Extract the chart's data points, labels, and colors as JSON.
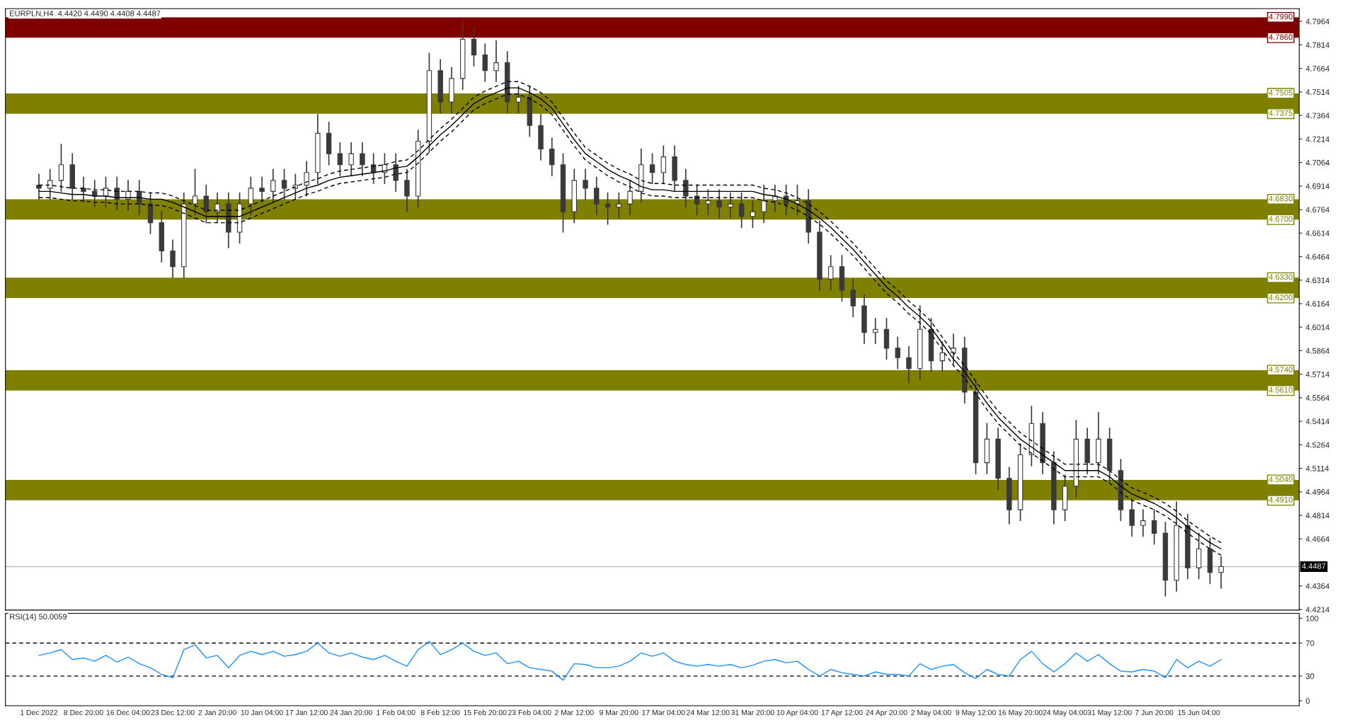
{
  "chart_data": [
    {
      "type": "candlestick",
      "title": "EURPLN,H4  4.4420 4.4490 4.4408 4.4487",
      "categories": [
        null,
        null,
        null,
        null,
        null,
        null,
        null,
        null,
        null,
        null,
        null,
        null,
        null,
        null,
        null,
        null,
        null,
        null,
        null,
        null,
        null,
        null,
        null,
        null,
        null,
        null,
        null,
        null,
        null,
        null,
        null,
        null,
        null,
        null,
        null,
        null,
        null,
        null,
        null,
        null,
        null,
        null,
        null,
        null,
        null,
        null,
        null,
        null,
        null,
        null,
        null,
        null,
        null,
        null,
        null,
        null,
        null,
        null,
        null,
        null,
        null,
        null,
        null,
        null,
        null,
        null,
        null,
        null,
        null,
        null,
        null,
        null,
        null,
        null,
        null,
        null,
        null,
        null,
        null,
        null,
        null,
        null,
        null,
        null,
        null,
        null,
        null,
        null,
        null,
        null,
        null,
        null,
        null,
        null,
        null,
        null,
        null,
        null,
        null,
        null,
        null,
        null,
        null,
        null,
        null,
        null,
        null
      ],
      "ohlc": [
        [
          4.692,
          4.699,
          4.683,
          4.69
        ],
        [
          4.69,
          4.702,
          4.683,
          4.695
        ],
        [
          4.695,
          4.718,
          4.688,
          4.705
        ],
        [
          4.705,
          4.712,
          4.683,
          4.69
        ],
        [
          4.69,
          4.697,
          4.681,
          4.688
        ],
        [
          4.688,
          4.695,
          4.678,
          4.685
        ],
        [
          4.685,
          4.697,
          4.678,
          4.69
        ],
        [
          4.69,
          4.697,
          4.676,
          4.683
        ],
        [
          4.683,
          4.695,
          4.676,
          4.688
        ],
        [
          4.688,
          4.695,
          4.673,
          4.68
        ],
        [
          4.68,
          4.687,
          4.661,
          4.668
        ],
        [
          4.668,
          4.675,
          4.643,
          4.65
        ],
        [
          4.65,
          4.657,
          4.633,
          4.64
        ],
        [
          4.64,
          4.687,
          4.633,
          4.68
        ],
        [
          4.68,
          4.702,
          4.673,
          4.685
        ],
        [
          4.685,
          4.692,
          4.668,
          4.675
        ],
        [
          4.675,
          4.687,
          4.668,
          4.68
        ],
        [
          4.68,
          4.687,
          4.652,
          4.662
        ],
        [
          4.662,
          4.687,
          4.655,
          4.68
        ],
        [
          4.68,
          4.697,
          4.673,
          4.69
        ],
        [
          4.69,
          4.697,
          4.681,
          4.688
        ],
        [
          4.688,
          4.702,
          4.681,
          4.695
        ],
        [
          4.695,
          4.702,
          4.683,
          4.69
        ],
        [
          4.69,
          4.699,
          4.683,
          4.692
        ],
        [
          4.692,
          4.707,
          4.685,
          4.7
        ],
        [
          4.7,
          4.737,
          4.693,
          4.725
        ],
        [
          4.725,
          4.732,
          4.705,
          4.712
        ],
        [
          4.712,
          4.719,
          4.698,
          4.705
        ],
        [
          4.705,
          4.719,
          4.698,
          4.712
        ],
        [
          4.712,
          4.719,
          4.698,
          4.705
        ],
        [
          4.705,
          4.712,
          4.693,
          4.7
        ],
        [
          4.7,
          4.712,
          4.693,
          4.705
        ],
        [
          4.705,
          4.712,
          4.688,
          4.695
        ],
        [
          4.695,
          4.702,
          4.675,
          4.685
        ],
        [
          4.685,
          4.727,
          4.678,
          4.72
        ],
        [
          4.72,
          4.776,
          4.713,
          4.765
        ],
        [
          4.765,
          4.772,
          4.738,
          4.745
        ],
        [
          4.745,
          4.767,
          4.738,
          4.76
        ],
        [
          4.76,
          4.797,
          4.753,
          4.785
        ],
        [
          4.785,
          4.792,
          4.768,
          4.775
        ],
        [
          4.775,
          4.782,
          4.758,
          4.765
        ],
        [
          4.765,
          4.784,
          4.758,
          4.77
        ],
        [
          4.77,
          4.777,
          4.738,
          4.745
        ],
        [
          4.745,
          4.755,
          4.738,
          4.748
        ],
        [
          4.748,
          4.755,
          4.723,
          4.73
        ],
        [
          4.73,
          4.737,
          4.708,
          4.715
        ],
        [
          4.715,
          4.722,
          4.698,
          4.705
        ],
        [
          4.705,
          4.712,
          4.662,
          4.675
        ],
        [
          4.675,
          4.702,
          4.668,
          4.695
        ],
        [
          4.695,
          4.702,
          4.683,
          4.69
        ],
        [
          4.69,
          4.697,
          4.673,
          4.68
        ],
        [
          4.68,
          4.687,
          4.667,
          4.678
        ],
        [
          4.678,
          4.687,
          4.671,
          4.68
        ],
        [
          4.68,
          4.695,
          4.673,
          4.688
        ],
        [
          4.688,
          4.715,
          4.681,
          4.705
        ],
        [
          4.705,
          4.712,
          4.693,
          4.7
        ],
        [
          4.7,
          4.717,
          4.693,
          4.71
        ],
        [
          4.71,
          4.717,
          4.688,
          4.695
        ],
        [
          4.695,
          4.702,
          4.678,
          4.685
        ],
        [
          4.685,
          4.692,
          4.673,
          4.68
        ],
        [
          4.68,
          4.689,
          4.673,
          4.682
        ],
        [
          4.682,
          4.689,
          4.671,
          4.678
        ],
        [
          4.678,
          4.687,
          4.671,
          4.68
        ],
        [
          4.68,
          4.687,
          4.665,
          4.672
        ],
        [
          4.672,
          4.682,
          4.665,
          4.675
        ],
        [
          4.675,
          4.692,
          4.668,
          4.682
        ],
        [
          4.682,
          4.692,
          4.675,
          4.685
        ],
        [
          4.685,
          4.692,
          4.673,
          4.68
        ],
        [
          4.68,
          4.692,
          4.673,
          4.682
        ],
        [
          4.682,
          4.689,
          4.655,
          4.662
        ],
        [
          4.662,
          4.669,
          4.625,
          4.632
        ],
        [
          4.632,
          4.647,
          4.625,
          4.64
        ],
        [
          4.64,
          4.647,
          4.618,
          4.625
        ],
        [
          4.625,
          4.632,
          4.608,
          4.615
        ],
        [
          4.615,
          4.622,
          4.591,
          4.598
        ],
        [
          4.598,
          4.607,
          4.591,
          4.6
        ],
        [
          4.6,
          4.607,
          4.581,
          4.588
        ],
        [
          4.588,
          4.595,
          4.575,
          4.582
        ],
        [
          4.582,
          4.589,
          4.566,
          4.575
        ],
        [
          4.575,
          4.615,
          4.568,
          4.6
        ],
        [
          4.6,
          4.607,
          4.573,
          4.58
        ],
        [
          4.58,
          4.592,
          4.573,
          4.585
        ],
        [
          4.585,
          4.597,
          4.578,
          4.588
        ],
        [
          4.588,
          4.595,
          4.553,
          4.56
        ],
        [
          4.56,
          4.567,
          4.508,
          4.515
        ],
        [
          4.515,
          4.54,
          4.508,
          4.53
        ],
        [
          4.53,
          4.537,
          4.498,
          4.505
        ],
        [
          4.505,
          4.512,
          4.476,
          4.485
        ],
        [
          4.485,
          4.527,
          4.478,
          4.52
        ],
        [
          4.52,
          4.551,
          4.513,
          4.54
        ],
        [
          4.54,
          4.547,
          4.508,
          4.515
        ],
        [
          4.515,
          4.522,
          4.476,
          4.485
        ],
        [
          4.485,
          4.507,
          4.478,
          4.5
        ],
        [
          4.5,
          4.542,
          4.493,
          4.53
        ],
        [
          4.53,
          4.537,
          4.508,
          4.515
        ],
        [
          4.515,
          4.547,
          4.508,
          4.53
        ],
        [
          4.53,
          4.537,
          4.503,
          4.51
        ],
        [
          4.51,
          4.517,
          4.478,
          4.485
        ],
        [
          4.485,
          4.492,
          4.468,
          4.475
        ],
        [
          4.475,
          4.485,
          4.468,
          4.478
        ],
        [
          4.478,
          4.485,
          4.463,
          4.47
        ],
        [
          4.47,
          4.477,
          4.43,
          4.44
        ],
        [
          4.44,
          4.49,
          4.433,
          4.475
        ],
        [
          4.475,
          4.482,
          4.441,
          4.448
        ],
        [
          4.448,
          4.47,
          4.441,
          4.46
        ],
        [
          4.46,
          4.467,
          4.438,
          4.445
        ],
        [
          4.445,
          4.455,
          4.435,
          4.4487
        ]
      ],
      "series": [
        {
          "type": "line",
          "color": "#000000",
          "line_style": "solid",
          "values": [
            4.688,
            4.688,
            4.687,
            4.686,
            4.686,
            4.685,
            4.685,
            4.684,
            4.684,
            4.684,
            4.683,
            4.683,
            4.681,
            4.678,
            4.675,
            4.672,
            4.672,
            4.672,
            4.672,
            4.675,
            4.678,
            4.681,
            4.684,
            4.687,
            4.69,
            4.692,
            4.695,
            4.697,
            4.698,
            4.699,
            4.7,
            4.701,
            4.703,
            4.704,
            4.71,
            4.717,
            4.724,
            4.73,
            4.737,
            4.744,
            4.748,
            4.751,
            4.754,
            4.754,
            4.751,
            4.747,
            4.741,
            4.731,
            4.721,
            4.712,
            4.707,
            4.702,
            4.698,
            4.695,
            4.691,
            4.689,
            4.689,
            4.688,
            4.688,
            4.688,
            4.688,
            4.688,
            4.688,
            4.688,
            4.688,
            4.686,
            4.685,
            4.683,
            4.68,
            4.676,
            4.671,
            4.665,
            4.658,
            4.651,
            4.643,
            4.635,
            4.627,
            4.621,
            4.614,
            4.608,
            4.601,
            4.591,
            4.581,
            4.573,
            4.563,
            4.553,
            4.544,
            4.537,
            4.53,
            4.525,
            4.52,
            4.515,
            4.51,
            4.51,
            4.51,
            4.51,
            4.506,
            4.5,
            4.495,
            4.492,
            4.489,
            4.485,
            4.48,
            4.474,
            4.469,
            4.464,
            4.46
          ]
        },
        {
          "type": "line",
          "color": "#000000",
          "line_style": "dashed",
          "values": [
            4.692,
            4.692,
            4.691,
            4.69,
            4.69,
            4.689,
            4.689,
            4.688,
            4.688,
            4.688,
            4.687,
            4.687,
            4.685,
            4.682,
            4.679,
            4.676,
            4.676,
            4.676,
            4.676,
            4.679,
            4.682,
            4.685,
            4.688,
            4.691,
            4.694,
            4.696,
            4.699,
            4.701,
            4.702,
            4.703,
            4.704,
            4.705,
            4.707,
            4.708,
            4.714,
            4.721,
            4.728,
            4.734,
            4.741,
            4.748,
            4.752,
            4.755,
            4.758,
            4.758,
            4.755,
            4.751,
            4.745,
            4.735,
            4.725,
            4.716,
            4.711,
            4.706,
            4.702,
            4.699,
            4.695,
            4.693,
            4.693,
            4.692,
            4.692,
            4.692,
            4.692,
            4.692,
            4.692,
            4.692,
            4.692,
            4.69,
            4.689,
            4.687,
            4.684,
            4.68,
            4.675,
            4.669,
            4.662,
            4.655,
            4.647,
            4.639,
            4.631,
            4.625,
            4.618,
            4.612,
            4.605,
            4.595,
            4.585,
            4.577,
            4.567,
            4.557,
            4.548,
            4.541,
            4.534,
            4.529,
            4.524,
            4.519,
            4.514,
            4.514,
            4.514,
            4.514,
            4.51,
            4.504,
            4.499,
            4.496,
            4.493,
            4.489,
            4.484,
            4.478,
            4.473,
            4.468,
            4.464
          ]
        },
        {
          "type": "line",
          "color": "#000000",
          "line_style": "dashed",
          "values": [
            4.684,
            4.684,
            4.683,
            4.682,
            4.682,
            4.681,
            4.681,
            4.68,
            4.68,
            4.68,
            4.679,
            4.679,
            4.677,
            4.674,
            4.671,
            4.668,
            4.668,
            4.668,
            4.668,
            4.671,
            4.674,
            4.677,
            4.68,
            4.683,
            4.686,
            4.688,
            4.691,
            4.693,
            4.694,
            4.695,
            4.696,
            4.697,
            4.699,
            4.7,
            4.706,
            4.713,
            4.72,
            4.726,
            4.733,
            4.74,
            4.744,
            4.747,
            4.75,
            4.75,
            4.747,
            4.743,
            4.737,
            4.727,
            4.717,
            4.708,
            4.703,
            4.698,
            4.694,
            4.691,
            4.687,
            4.685,
            4.685,
            4.684,
            4.684,
            4.684,
            4.684,
            4.684,
            4.684,
            4.684,
            4.684,
            4.682,
            4.681,
            4.679,
            4.676,
            4.672,
            4.667,
            4.661,
            4.654,
            4.647,
            4.639,
            4.631,
            4.623,
            4.617,
            4.61,
            4.604,
            4.597,
            4.587,
            4.577,
            4.569,
            4.559,
            4.549,
            4.54,
            4.533,
            4.526,
            4.521,
            4.516,
            4.511,
            4.506,
            4.506,
            4.506,
            4.506,
            4.502,
            4.496,
            4.491,
            4.488,
            4.485,
            4.481,
            4.476,
            4.47,
            4.465,
            4.46,
            4.456
          ]
        }
      ],
      "ylim": [
        4.421,
        4.8045
      ],
      "yticks": [
        4.4214,
        4.4364,
        4.4664,
        4.4814,
        4.4964,
        4.5114,
        4.5264,
        4.5414,
        4.5564,
        4.5714,
        4.5864,
        4.6014,
        4.6164,
        4.6314,
        4.6464,
        4.6614,
        4.6764,
        4.6914,
        4.7064,
        4.7214,
        4.7364,
        4.7514,
        4.7664,
        4.7814,
        4.7964
      ],
      "bands": [
        {
          "axis": "y",
          "from": 4.786,
          "to": 4.799,
          "color": "#800000"
        },
        {
          "axis": "y",
          "from": 4.7375,
          "to": 4.7505,
          "color": "#808000"
        },
        {
          "axis": "y",
          "from": 4.67,
          "to": 4.683,
          "color": "#808000"
        },
        {
          "axis": "y",
          "from": 4.62,
          "to": 4.633,
          "color": "#808000"
        },
        {
          "axis": "y",
          "from": 4.561,
          "to": 4.574,
          "color": "#808000"
        },
        {
          "axis": "y",
          "from": 4.491,
          "to": 4.504,
          "color": "#808000"
        }
      ],
      "ref_lines": [
        {
          "axis": "y",
          "value": 4.4487,
          "label": "4.4487",
          "color": "#c0c0c0"
        }
      ],
      "annotations": [
        {
          "text": "4.7990",
          "y": 4.799
        },
        {
          "text": "4.7860",
          "y": 4.786
        },
        {
          "text": "4.7505",
          "y": 4.7505
        },
        {
          "text": "4.7375",
          "y": 4.7375
        },
        {
          "text": "4.6830",
          "y": 4.683
        },
        {
          "text": "4.6700",
          "y": 4.67
        },
        {
          "text": "4.6330",
          "y": 4.633
        },
        {
          "text": "4.6200",
          "y": 4.62
        },
        {
          "text": "4.5740",
          "y": 4.574
        },
        {
          "text": "4.5610",
          "y": 4.561
        },
        {
          "text": "4.5040",
          "y": 4.504
        },
        {
          "text": "4.4910",
          "y": 4.491
        }
      ],
      "grid": false,
      "legend": false,
      "tick_labels": "y"
    },
    {
      "type": "line",
      "title": "RSI(14) 50.0059",
      "categories": [
        "1 Dec 2022",
        null,
        null,
        null,
        "8 Dec 20:00",
        null,
        null,
        null,
        "16 Dec 04:00",
        null,
        null,
        null,
        "23 Dec 12:00",
        null,
        null,
        null,
        "2 Jan 20:00",
        null,
        null,
        null,
        "10 Jan 04:00",
        null,
        null,
        null,
        "17 Jan 12:00",
        null,
        null,
        null,
        "24 Jan 20:00",
        null,
        null,
        null,
        "1 Feb 04:00",
        null,
        null,
        null,
        "8 Feb 12:00",
        null,
        null,
        null,
        "15 Feb 20:00",
        null,
        null,
        null,
        "23 Feb 04:00",
        null,
        null,
        null,
        "2 Mar 12:00",
        null,
        null,
        null,
        "9 Mar 20:00",
        null,
        null,
        null,
        "17 Mar 04:00",
        null,
        null,
        null,
        "24 Mar 12:00",
        null,
        null,
        null,
        "31 Mar 20:00",
        null,
        null,
        null,
        "10 Apr 04:00",
        null,
        null,
        null,
        "17 Apr 12:00",
        null,
        null,
        null,
        "24 Apr 20:00",
        null,
        null,
        null,
        "2 May 04:00",
        null,
        null,
        null,
        "9 May 12:00",
        null,
        null,
        null,
        "16 May 20:00",
        null,
        null,
        null,
        "24 May 04:00",
        null,
        null,
        null,
        "31 May 12:00",
        null,
        null,
        null,
        "7 Jun 20:00",
        null,
        null,
        null,
        "15 Jun 04:00",
        null,
        null
      ],
      "series": [
        {
          "color": "#1e90ff",
          "values": [
            55,
            58,
            62,
            50,
            52,
            48,
            55,
            47,
            53,
            45,
            40,
            32,
            28,
            62,
            68,
            52,
            55,
            40,
            55,
            60,
            56,
            60,
            54,
            56,
            60,
            70,
            58,
            54,
            58,
            53,
            50,
            55,
            48,
            42,
            62,
            72,
            56,
            62,
            70,
            60,
            55,
            58,
            45,
            48,
            40,
            38,
            36,
            25,
            45,
            44,
            40,
            40,
            42,
            48,
            58,
            54,
            58,
            48,
            44,
            42,
            44,
            42,
            44,
            40,
            43,
            48,
            50,
            46,
            48,
            38,
            30,
            38,
            34,
            32,
            30,
            35,
            32,
            32,
            30,
            45,
            38,
            42,
            44,
            34,
            27,
            38,
            32,
            30,
            50,
            60,
            45,
            35,
            45,
            58,
            48,
            56,
            45,
            36,
            35,
            38,
            36,
            28,
            50,
            40,
            48,
            42,
            50.0059
          ]
        }
      ],
      "ylim": [
        -6,
        106
      ],
      "yticks": [
        0,
        30,
        70,
        100
      ],
      "ref_lines": [
        {
          "axis": "y",
          "value": 70,
          "color": "#000000",
          "line_style": "dashed"
        },
        {
          "axis": "y",
          "value": 30,
          "color": "#000000",
          "line_style": "dashed"
        }
      ],
      "grid": false,
      "legend": false
    }
  ]
}
